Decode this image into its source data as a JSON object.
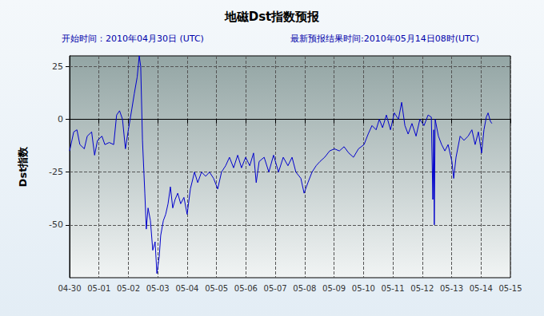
{
  "chart_data": {
    "type": "line",
    "title": "地磁Dst指数预报",
    "subtitles": [
      "开始时间：2010年04月30日 (UTC)",
      "最新预报结果时间:2010年05月14日08时(UTC)"
    ],
    "y_label": "Dst指数",
    "color": "#0000cc",
    "grid": true,
    "xlim": [
      0,
      15
    ],
    "xticks": [
      {
        "value": 0,
        "label": "04-30"
      },
      {
        "value": 1,
        "label": "05-01"
      },
      {
        "value": 2,
        "label": "05-02"
      },
      {
        "value": 3,
        "label": "05-03"
      },
      {
        "value": 4,
        "label": "05-04"
      },
      {
        "value": 5,
        "label": "05-05"
      },
      {
        "value": 6,
        "label": "05-06"
      },
      {
        "value": 7,
        "label": "05-07"
      },
      {
        "value": 8,
        "label": "05-08"
      },
      {
        "value": 9,
        "label": "05-09"
      },
      {
        "value": 10,
        "label": "05-10"
      },
      {
        "value": 11,
        "label": "05-11"
      },
      {
        "value": 12,
        "label": "05-12"
      },
      {
        "value": 13,
        "label": "05-13"
      },
      {
        "value": 14,
        "label": "05-14"
      },
      {
        "value": 15,
        "label": "05-15"
      }
    ],
    "ylim": [
      -75,
      30
    ],
    "yticks": [
      -50,
      -25,
      0,
      25
    ],
    "x": [
      0,
      0.14,
      0.25,
      0.35,
      0.5,
      0.6,
      0.75,
      0.85,
      0.95,
      1.1,
      1.2,
      1.35,
      1.5,
      1.6,
      1.7,
      1.8,
      1.9,
      2.0,
      2.12,
      2.2,
      2.3,
      2.37,
      2.42,
      2.48,
      2.56,
      2.61,
      2.67,
      2.75,
      2.83,
      2.91,
      2.97,
      3.05,
      3.1,
      3.19,
      3.27,
      3.35,
      3.43,
      3.51,
      3.59,
      3.68,
      3.78,
      3.89,
      4.0,
      4.11,
      4.25,
      4.36,
      4.49,
      4.63,
      4.76,
      4.9,
      5.04,
      5.17,
      5.31,
      5.44,
      5.58,
      5.72,
      5.85,
      5.99,
      6.13,
      6.26,
      6.35,
      6.45,
      6.62,
      6.78,
      6.94,
      7.11,
      7.27,
      7.43,
      7.57,
      7.7,
      7.87,
      7.98,
      8.11,
      8.25,
      8.39,
      8.52,
      8.68,
      8.85,
      9.01,
      9.18,
      9.34,
      9.5,
      9.66,
      9.83,
      10.02,
      10.16,
      10.29,
      10.43,
      10.54,
      10.65,
      10.78,
      10.92,
      11.05,
      11.19,
      11.3,
      11.41,
      11.52,
      11.65,
      11.79,
      11.92,
      12.06,
      12.2,
      12.31,
      12.36,
      12.39,
      12.41,
      12.44,
      12.55,
      12.66,
      12.77,
      12.88,
      13.01,
      13.07,
      13.15,
      13.29,
      13.42,
      13.56,
      13.69,
      13.8,
      13.91,
      14.02,
      14.1,
      14.18,
      14.24,
      14.32,
      14.37
    ],
    "values": [
      -15,
      -6,
      -5,
      -12,
      -14,
      -8,
      -6,
      -17,
      -10,
      -8,
      -12,
      -11,
      -12,
      2,
      4,
      0,
      -14,
      -5,
      5,
      12,
      20,
      30,
      25,
      -10,
      -35,
      -52,
      -42,
      -48,
      -62,
      -58,
      -73,
      -65,
      -55,
      -48,
      -45,
      -40,
      -32,
      -42,
      -38,
      -35,
      -40,
      -37,
      -45,
      -33,
      -25,
      -30,
      -25,
      -27,
      -25,
      -28,
      -33,
      -25,
      -22,
      -18,
      -23,
      -17,
      -23,
      -18,
      -22,
      -16,
      -30,
      -20,
      -18,
      -25,
      -17,
      -25,
      -18,
      -22,
      -18,
      -25,
      -28,
      -35,
      -30,
      -25,
      -22,
      -20,
      -18,
      -15,
      -14,
      -15,
      -13,
      -16,
      -18,
      -14,
      -12,
      -7,
      -3,
      -5,
      0,
      -4,
      2,
      -5,
      3,
      0,
      8,
      -3,
      -7,
      -2,
      -8,
      0,
      -3,
      2,
      1,
      -38,
      -5,
      -50,
      0,
      -8,
      -12,
      -15,
      -12,
      -20,
      -28,
      -18,
      -8,
      -10,
      -8,
      -5,
      -12,
      -6,
      -16,
      -5,
      1,
      3,
      -1,
      -2
    ]
  }
}
